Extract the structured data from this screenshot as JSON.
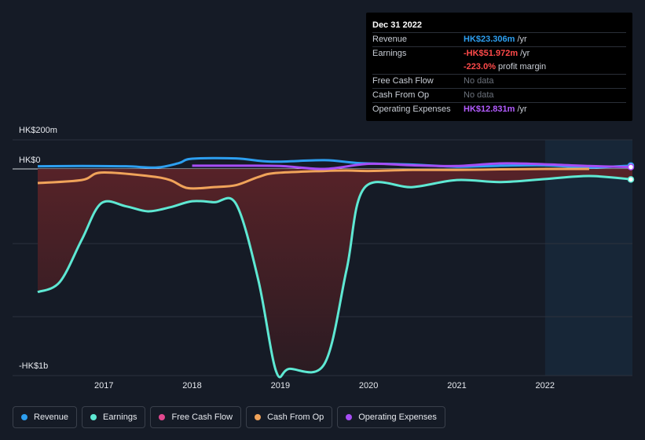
{
  "tooltip": {
    "date": "Dec 31 2022",
    "rows": [
      {
        "label": "Revenue",
        "value": "HK$23.306m",
        "unit": "/yr"
      },
      {
        "label": "Earnings",
        "value": "-HK$51.972m",
        "unit": "/yr"
      },
      {
        "label": "",
        "value": "-223.0%",
        "unit": "profit margin"
      },
      {
        "label": "Free Cash Flow",
        "value": "No data"
      },
      {
        "label": "Cash From Op",
        "value": "No data"
      },
      {
        "label": "Operating Expenses",
        "value": "HK$12.831m",
        "unit": "/yr"
      }
    ]
  },
  "legend": [
    {
      "label": "Revenue",
      "color": "#2d9ff0"
    },
    {
      "label": "Earnings",
      "color": "#5ee8d3"
    },
    {
      "label": "Free Cash Flow",
      "color": "#e2488f"
    },
    {
      "label": "Cash From Op",
      "color": "#f0a35a"
    },
    {
      "label": "Operating Expenses",
      "color": "#a64df5"
    }
  ],
  "chart_data": {
    "type": "line",
    "y_top_label": "HK$200m",
    "y_zero_label": "HK$0",
    "y_bottom_label": "-HK$1b",
    "ylim": [
      -1000,
      200
    ],
    "x_ticks": [
      "2017",
      "2018",
      "2019",
      "2020",
      "2021",
      "2022"
    ],
    "xlim": [
      2016.25,
      2022.99
    ],
    "forecast_start": 2022.0,
    "grid": true,
    "series": [
      {
        "name": "Revenue",
        "color": "#2d9ff0",
        "points": [
          [
            2016.25,
            18
          ],
          [
            2016.75,
            20
          ],
          [
            2017.25,
            18
          ],
          [
            2017.6,
            10
          ],
          [
            2017.85,
            40
          ],
          [
            2018.0,
            70
          ],
          [
            2018.5,
            72
          ],
          [
            2018.9,
            50
          ],
          [
            2019.5,
            60
          ],
          [
            2019.9,
            40
          ],
          [
            2020.5,
            30
          ],
          [
            2021.0,
            15
          ],
          [
            2021.5,
            22
          ],
          [
            2022.0,
            25
          ],
          [
            2022.5,
            10
          ],
          [
            2022.99,
            23.3
          ]
        ]
      },
      {
        "name": "Earnings",
        "color": "#5ee8d3",
        "points": [
          [
            2016.25,
            -610
          ],
          [
            2016.5,
            -560
          ],
          [
            2016.75,
            -350
          ],
          [
            2016.97,
            -170
          ],
          [
            2017.25,
            -185
          ],
          [
            2017.5,
            -210
          ],
          [
            2017.75,
            -190
          ],
          [
            2018.0,
            -160
          ],
          [
            2018.25,
            -165
          ],
          [
            2018.5,
            -175
          ],
          [
            2018.75,
            -550
          ],
          [
            2018.95,
            -1000
          ],
          [
            2019.1,
            -990
          ],
          [
            2019.5,
            -965
          ],
          [
            2019.75,
            -500
          ],
          [
            2019.95,
            -95
          ],
          [
            2020.5,
            -90
          ],
          [
            2021.0,
            -55
          ],
          [
            2021.5,
            -65
          ],
          [
            2022.0,
            -50
          ],
          [
            2022.5,
            -35
          ],
          [
            2022.99,
            -52
          ]
        ]
      },
      {
        "name": "Cash From Op",
        "color": "#f0a35a",
        "points": [
          [
            2016.25,
            -70
          ],
          [
            2016.75,
            -55
          ],
          [
            2016.97,
            -18
          ],
          [
            2017.5,
            -35
          ],
          [
            2017.75,
            -55
          ],
          [
            2017.95,
            -95
          ],
          [
            2018.25,
            -90
          ],
          [
            2018.5,
            -80
          ],
          [
            2018.75,
            -40
          ],
          [
            2018.95,
            -20
          ],
          [
            2019.5,
            -10
          ],
          [
            2019.75,
            -8
          ],
          [
            2020.0,
            -10
          ],
          [
            2020.5,
            -5
          ],
          [
            2021.0,
            -5
          ],
          [
            2021.5,
            -2
          ],
          [
            2022.0,
            0
          ],
          [
            2022.5,
            0
          ]
        ]
      },
      {
        "name": "Operating Expenses",
        "color": "#a64df5",
        "points": [
          [
            2018.0,
            22
          ],
          [
            2018.5,
            22
          ],
          [
            2019.0,
            20
          ],
          [
            2019.5,
            0
          ],
          [
            2020.0,
            35
          ],
          [
            2020.5,
            25
          ],
          [
            2021.0,
            20
          ],
          [
            2021.5,
            38
          ],
          [
            2022.0,
            32
          ],
          [
            2022.5,
            20
          ],
          [
            2022.99,
            12.8
          ]
        ]
      }
    ]
  }
}
